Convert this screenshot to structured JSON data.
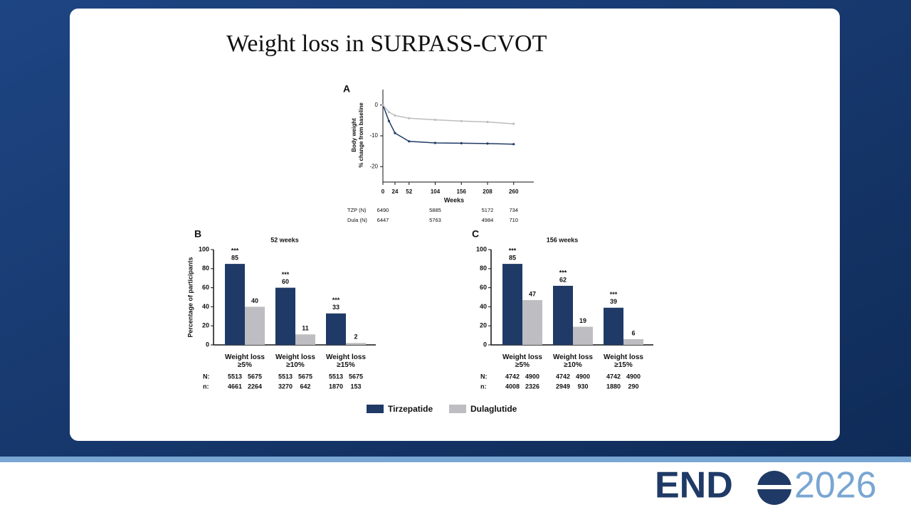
{
  "slide": {
    "title": "Weight loss in SURPASS-CVOT"
  },
  "logo": {
    "left": "END",
    "right": "2026"
  },
  "chart_data": [
    {
      "type": "line",
      "panel": "A",
      "ylabel": [
        "Body weight",
        "% change from baseline"
      ],
      "xlabel": "Weeks",
      "x": [
        0,
        12,
        24,
        52,
        104,
        156,
        208,
        260
      ],
      "series": [
        {
          "color": "#1f3a66",
          "values": [
            0,
            -5.2,
            -9.1,
            -11.8,
            -12.3,
            -12.4,
            -12.5,
            -12.7
          ]
        },
        {
          "color": "#bdbdc2",
          "values": [
            0,
            -2.3,
            -3.4,
            -4.3,
            -4.8,
            -5.2,
            -5.5,
            -6.1
          ]
        }
      ],
      "xlim": [
        0,
        300
      ],
      "xticks": [
        0,
        24,
        52,
        104,
        156,
        208,
        260
      ],
      "ylim": [
        -25,
        5
      ],
      "yticks": [
        0,
        -10,
        -20
      ],
      "at_risk": {
        "x": [
          0,
          104,
          208,
          260
        ],
        "rows": [
          {
            "label": "TZP (N)",
            "values": [
              6490,
              5885,
              5172,
              734
            ]
          },
          {
            "label": "Dula (N)",
            "values": [
              6447,
              5763,
              4984,
              710
            ]
          }
        ]
      }
    },
    {
      "type": "bar",
      "panel": "B",
      "title": "52 weeks",
      "ylabel": "Percentage of participants",
      "categories": [
        "Weight loss ≥5%",
        "Weight loss ≥10%",
        "Weight loss ≥15%"
      ],
      "series": [
        {
          "name": "Tirzepatide",
          "color": "#1f3a66",
          "values": [
            85,
            60,
            33
          ],
          "annotations": [
            "***",
            "***",
            "***"
          ]
        },
        {
          "name": "Dulaglutide",
          "color": "#bdbdc2",
          "values": [
            40,
            11,
            2
          ]
        }
      ],
      "ylim": [
        0,
        100
      ],
      "yticks": [
        0,
        20,
        40,
        60,
        80,
        100
      ],
      "table": [
        {
          "label": "N:",
          "values": [
            5513,
            5675,
            5513,
            5675,
            5513,
            5675
          ]
        },
        {
          "label": "n:",
          "values": [
            4661,
            2264,
            3270,
            642,
            1870,
            153
          ]
        }
      ]
    },
    {
      "type": "bar",
      "panel": "C",
      "title": "156 weeks",
      "categories": [
        "Weight loss ≥5%",
        "Weight loss ≥10%",
        "Weight loss ≥15%"
      ],
      "series": [
        {
          "color": "#1f3a66",
          "values": [
            85,
            62,
            39
          ],
          "annotations": [
            "***",
            "***",
            "***"
          ]
        },
        {
          "color": "#bdbdc2",
          "values": [
            47,
            19,
            6
          ]
        }
      ],
      "ylim": [
        0,
        100
      ],
      "yticks": [
        0,
        20,
        40,
        60,
        80,
        100
      ],
      "table": [
        {
          "label": "N:",
          "values": [
            4742,
            4900,
            4742,
            4900,
            4742,
            4900
          ]
        },
        {
          "label": "n:",
          "values": [
            4008,
            2326,
            2949,
            930,
            1880,
            290
          ]
        }
      ]
    }
  ]
}
